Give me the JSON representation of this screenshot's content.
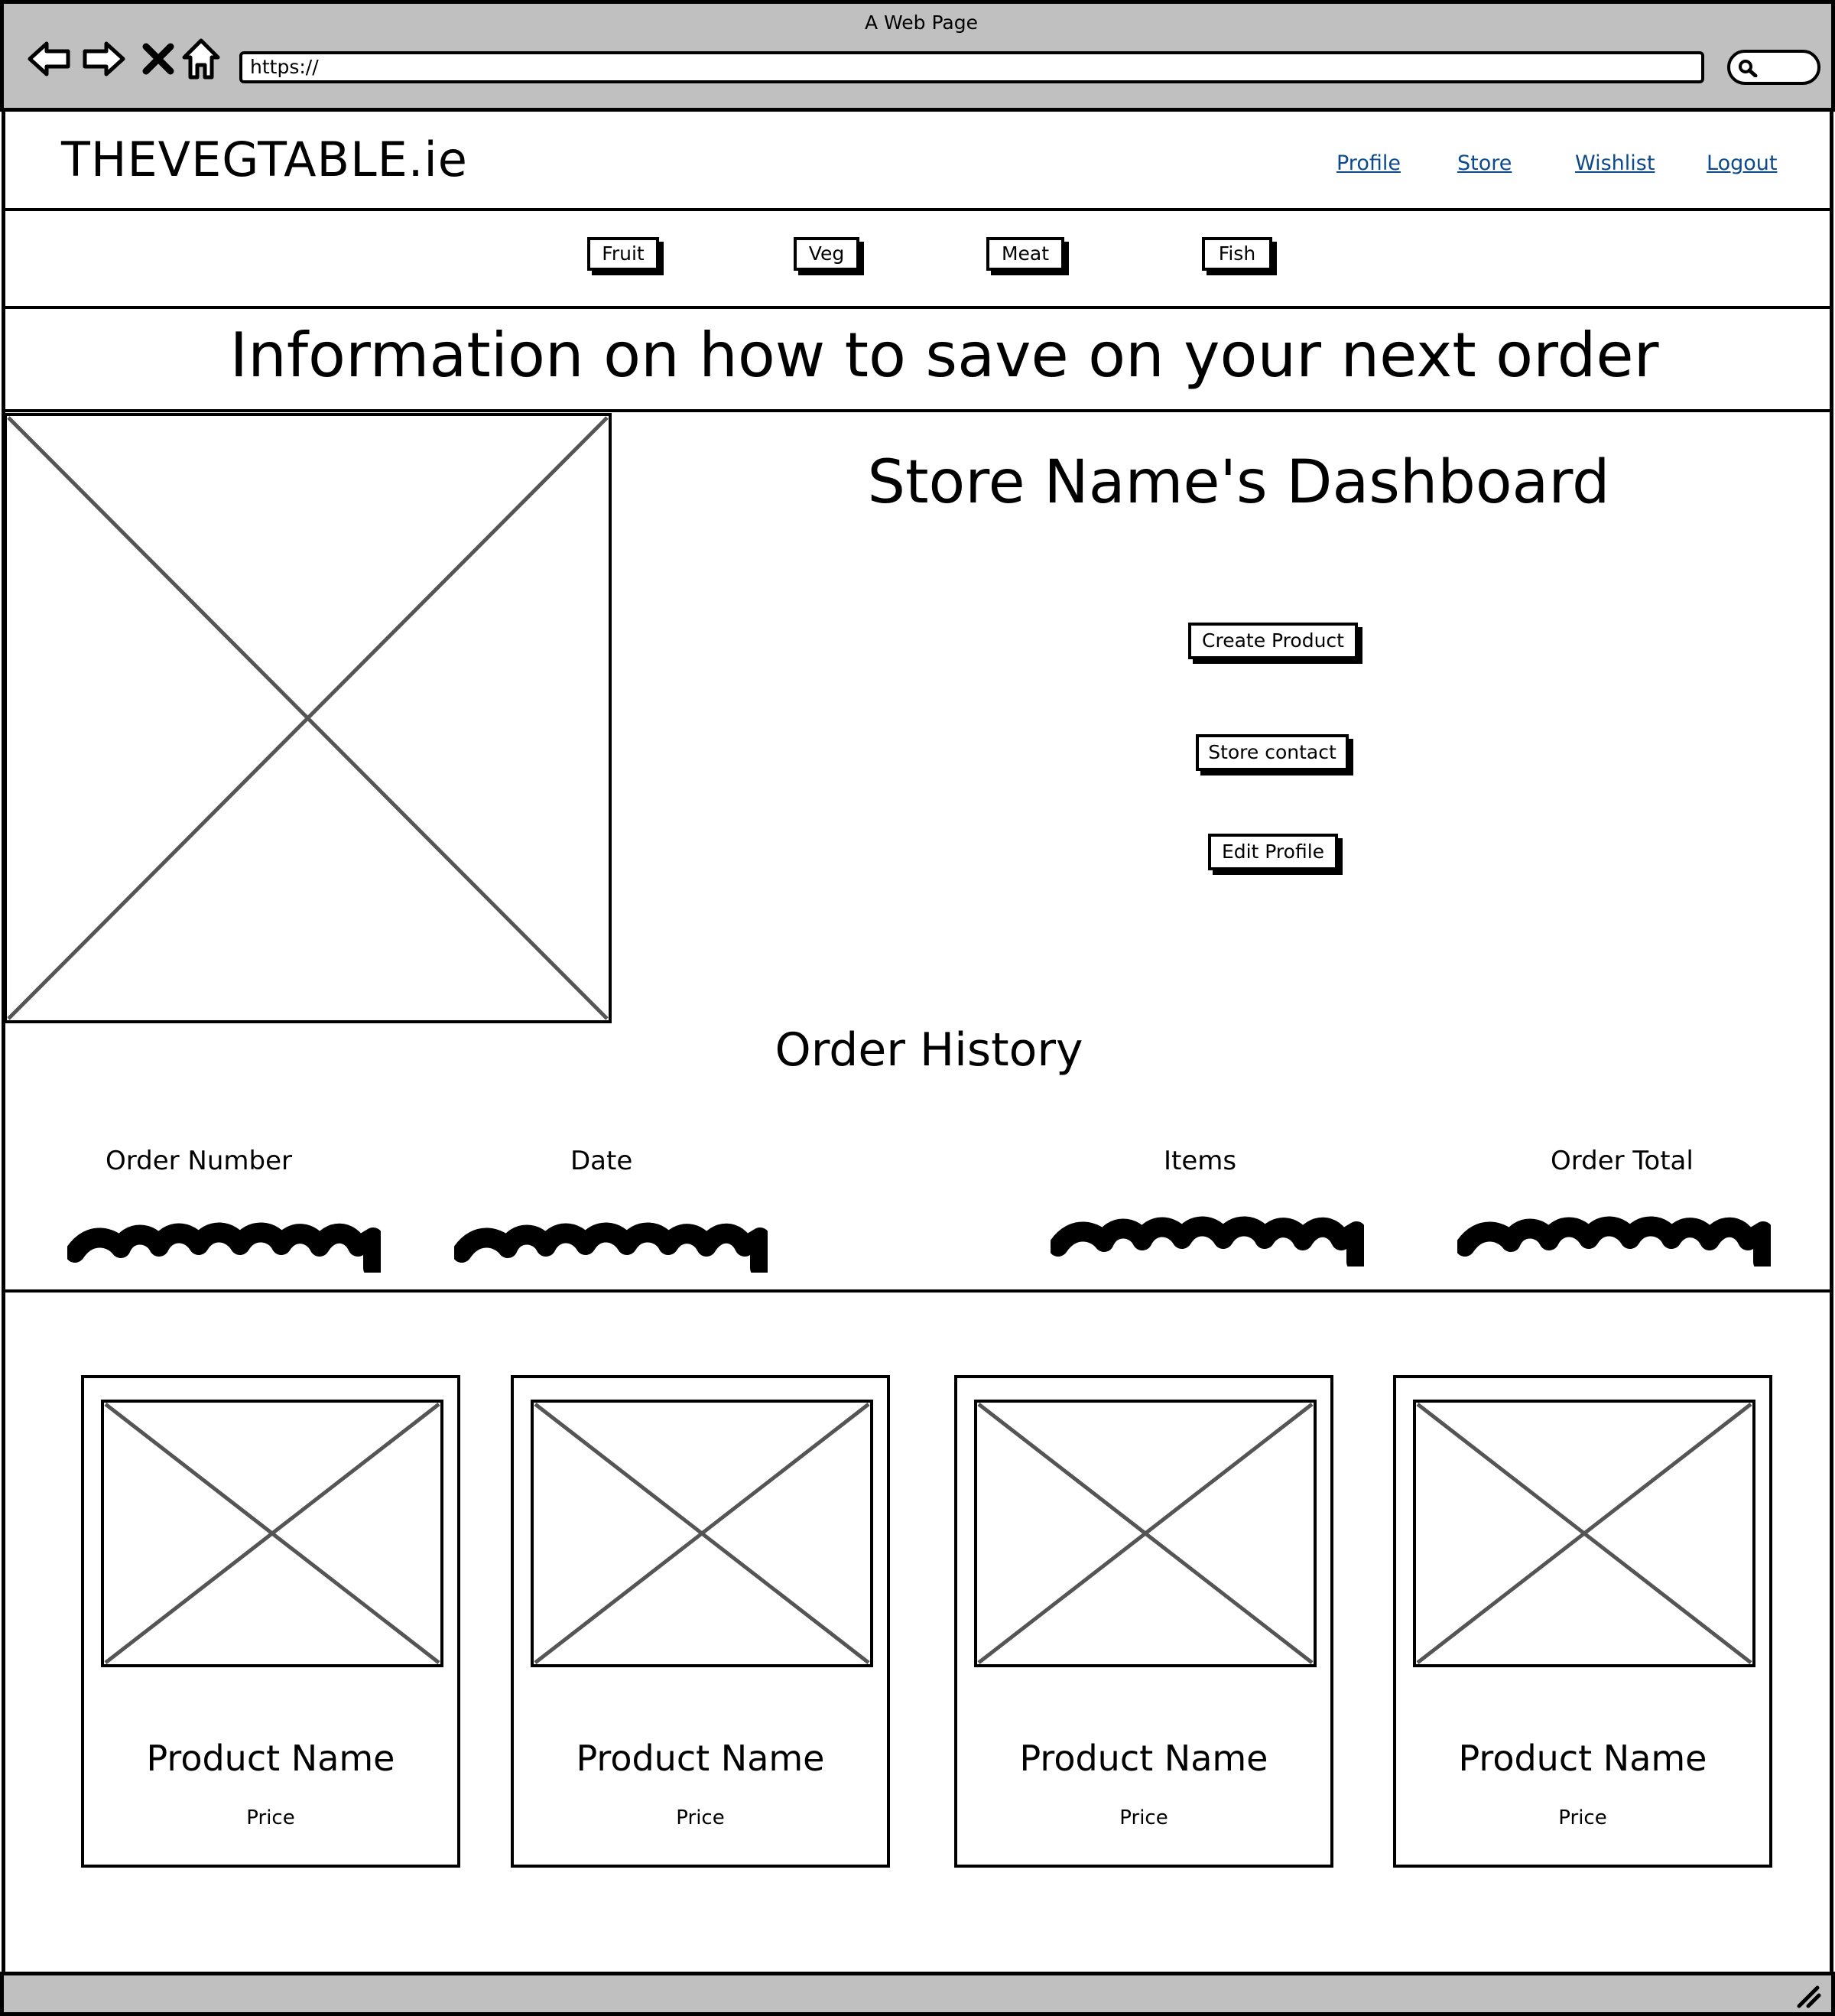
{
  "browser": {
    "window_title": "A Web Page",
    "address": "https://",
    "icons": [
      "back-arrow-icon",
      "forward-arrow-icon",
      "close-icon",
      "home-icon",
      "search-icon"
    ]
  },
  "header": {
    "logo": "THEVEGTABLE.ie",
    "links": [
      "Profile",
      "Store",
      "Wishlist",
      "Logout"
    ],
    "link_color": "#0c4a8c"
  },
  "categories": [
    "Fruit",
    "Veg",
    "Meat",
    "Fish"
  ],
  "banner": "Information on how to save on your next order",
  "dashboard": {
    "title": "Store Name's Dashboard",
    "buttons": [
      "Create Product",
      "Store contact",
      "Edit Profile"
    ]
  },
  "order_history": {
    "title": "Order History",
    "columns": [
      "Order Number",
      "Date",
      "Items",
      "Order Total"
    ]
  },
  "products": [
    {
      "name": "Product Name",
      "price": "Price"
    },
    {
      "name": "Product Name",
      "price": "Price"
    },
    {
      "name": "Product Name",
      "price": "Price"
    },
    {
      "name": "Product Name",
      "price": "Price"
    }
  ],
  "colors": {
    "chrome": "#c0c0c0",
    "ink": "#000000",
    "placeholder_line": "#555555"
  }
}
